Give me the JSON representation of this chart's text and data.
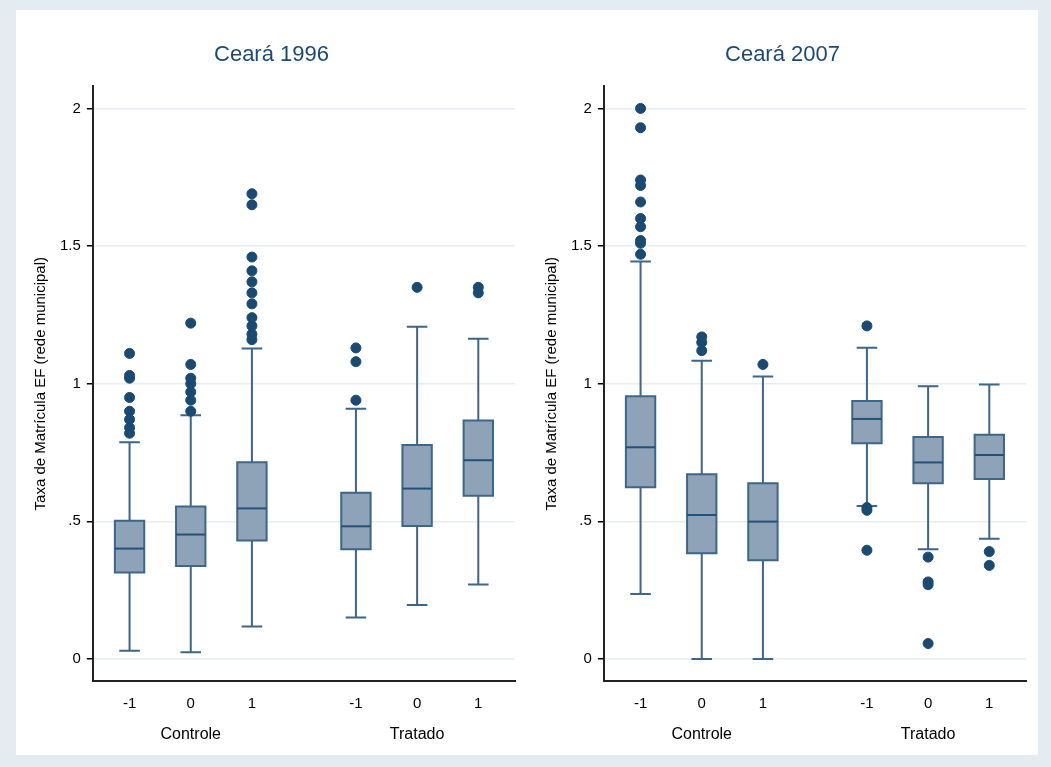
{
  "chart_data": [
    {
      "type": "box",
      "title": "Ceará 1996",
      "ylabel": "Taxa de Matrícula EF (rede municipal)",
      "categories": [
        "-1",
        "0",
        "1",
        "-1",
        "0",
        "1"
      ],
      "annotations": [
        "Controle",
        "Tratado"
      ],
      "color": "#8ea3b8",
      "ylim": [
        -0.08,
        2.08
      ],
      "yticks": [
        0,
        {
          "value": 0.5,
          "label": ".5"
        },
        1,
        1.5,
        2
      ],
      "grid": "y",
      "boxes": [
        {
          "low": 0.03,
          "q1": 0.314,
          "median": 0.401,
          "q3": 0.502,
          "high": 0.787,
          "outliers": [
            0.82,
            0.84,
            0.87,
            0.9,
            0.95,
            1.02,
            1.03,
            1.11
          ]
        },
        {
          "low": 0.024,
          "q1": 0.338,
          "median": 0.452,
          "q3": 0.554,
          "high": 0.885,
          "outliers": [
            0.9,
            0.94,
            0.97,
            1.0,
            1.02,
            1.07,
            1.22
          ]
        },
        {
          "low": 0.118,
          "q1": 0.43,
          "median": 0.547,
          "q3": 0.715,
          "high": 1.128,
          "outliers": [
            1.16,
            1.18,
            1.21,
            1.24,
            1.29,
            1.33,
            1.37,
            1.41,
            1.46,
            1.65,
            1.69
          ]
        },
        {
          "low": 0.151,
          "q1": 0.399,
          "median": 0.482,
          "q3": 0.604,
          "high": 0.909,
          "outliers": [
            0.94,
            1.08,
            1.13
          ]
        },
        {
          "low": 0.196,
          "q1": 0.483,
          "median": 0.619,
          "q3": 0.777,
          "high": 1.207,
          "outliers": [
            1.35
          ]
        },
        {
          "low": 0.271,
          "q1": 0.593,
          "median": 0.722,
          "q3": 0.866,
          "high": 1.163,
          "outliers": [
            1.33,
            1.35
          ]
        }
      ]
    },
    {
      "type": "box",
      "title": "Ceará 2007",
      "ylabel": "Taxa de Matrícula EF (rede municipal)",
      "categories": [
        "-1",
        "0",
        "1",
        "-1",
        "0",
        "1"
      ],
      "annotations": [
        "Controle",
        "Tratado"
      ],
      "color": "#8ea3b8",
      "ylim": [
        -0.08,
        2.08
      ],
      "yticks": [
        0,
        {
          "value": 0.5,
          "label": ".5"
        },
        1,
        1.5,
        2
      ],
      "grid": "y",
      "boxes": [
        {
          "low": 0.236,
          "q1": 0.624,
          "median": 0.769,
          "q3": 0.954,
          "high": 1.444,
          "outliers": [
            1.47,
            1.51,
            1.52,
            1.57,
            1.6,
            1.66,
            1.72,
            1.74,
            1.93,
            2.0
          ]
        },
        {
          "low": 0,
          "q1": 0.384,
          "median": 0.523,
          "q3": 0.671,
          "high": 1.083,
          "outliers": [
            1.12,
            1.15,
            1.17
          ]
        },
        {
          "low": 0,
          "q1": 0.359,
          "median": 0.499,
          "q3": 0.638,
          "high": 1.026,
          "outliers": [
            1.07
          ]
        },
        {
          "low": 0.556,
          "q1": 0.784,
          "median": 0.872,
          "q3": 0.937,
          "high": 1.131,
          "outliers": [
            0.395,
            0.54,
            0.55,
            1.21
          ]
        },
        {
          "low": 0.399,
          "q1": 0.638,
          "median": 0.714,
          "q3": 0.806,
          "high": 0.991,
          "outliers": [
            0.056,
            0.27,
            0.28,
            0.37
          ]
        },
        {
          "low": 0.437,
          "q1": 0.654,
          "median": 0.741,
          "q3": 0.815,
          "high": 0.997,
          "outliers": [
            0.34,
            0.39
          ]
        }
      ]
    }
  ]
}
